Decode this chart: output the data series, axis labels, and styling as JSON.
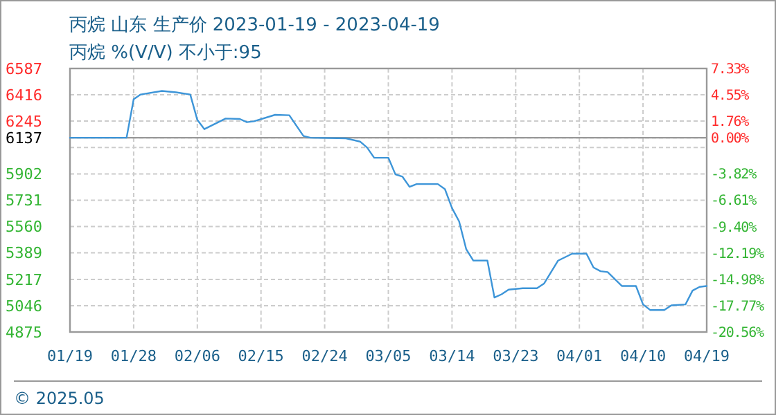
{
  "chart_data": {
    "type": "line",
    "title": "丙烷 山东 生产价 2023-01-19 - 2023-04-19",
    "subtitle": "丙烷 %(V/V) 不小于:95",
    "annotations": [
      "© 2025.05"
    ],
    "x": [
      "2023-01-19",
      "2023-01-27",
      "2023-01-28",
      "2023-01-29",
      "2023-02-01",
      "2023-02-03",
      "2023-02-05",
      "2023-02-06",
      "2023-02-07",
      "2023-02-10",
      "2023-02-12",
      "2023-02-13",
      "2023-02-14",
      "2023-02-17",
      "2023-02-19",
      "2023-02-21",
      "2023-02-22",
      "2023-02-27",
      "2023-03-01",
      "2023-03-02",
      "2023-03-03",
      "2023-03-05",
      "2023-03-06",
      "2023-03-07",
      "2023-03-08",
      "2023-03-09",
      "2023-03-12",
      "2023-03-13",
      "2023-03-14",
      "2023-03-15",
      "2023-03-16",
      "2023-03-17",
      "2023-03-19",
      "2023-03-20",
      "2023-03-21",
      "2023-03-22",
      "2023-03-24",
      "2023-03-26",
      "2023-03-27",
      "2023-03-29",
      "2023-03-31",
      "2023-04-02",
      "2023-04-03",
      "2023-04-04",
      "2023-04-05",
      "2023-04-07",
      "2023-04-09",
      "2023-04-10",
      "2023-04-11",
      "2023-04-13",
      "2023-04-14",
      "2023-04-16",
      "2023-04-17",
      "2023-04-18",
      "2023-04-19"
    ],
    "series": [
      {
        "color": "#3d95d8",
        "values": [
          6137,
          6137,
          6387,
          6418,
          6441,
          6432,
          6418,
          6253,
          6193,
          6262,
          6259,
          6238,
          6244,
          6286,
          6283,
          6148,
          6137,
          6133,
          6112,
          6073,
          6007,
          6007,
          5899,
          5884,
          5818,
          5836,
          5836,
          5803,
          5680,
          5594,
          5414,
          5339,
          5339,
          5099,
          5120,
          5150,
          5159,
          5159,
          5189,
          5339,
          5384,
          5384,
          5294,
          5270,
          5264,
          5174,
          5174,
          5054,
          5018,
          5018,
          5048,
          5054,
          5144,
          5168,
          5174
        ]
      }
    ],
    "xlim": [
      "2023-01-19",
      "2023-04-19"
    ],
    "xticks": [
      {
        "value": "2023-01-19",
        "label": "01/19"
      },
      {
        "value": "2023-01-28",
        "label": "01/28"
      },
      {
        "value": "2023-02-06",
        "label": "02/06"
      },
      {
        "value": "2023-02-15",
        "label": "02/15"
      },
      {
        "value": "2023-02-24",
        "label": "02/24"
      },
      {
        "value": "2023-03-05",
        "label": "03/05"
      },
      {
        "value": "2023-03-14",
        "label": "03/14"
      },
      {
        "value": "2023-03-23",
        "label": "03/23"
      },
      {
        "value": "2023-04-01",
        "label": "04/01"
      },
      {
        "value": "2023-04-10",
        "label": "04/10"
      },
      {
        "value": "2023-04-19",
        "label": "04/19"
      }
    ],
    "ylim": [
      4875,
      6587
    ],
    "yticks": [
      4875,
      5046,
      5217,
      5389,
      5560,
      5731,
      5902,
      {
        "value": 6074,
        "label": null
      },
      6137,
      6245,
      6416,
      6587
    ],
    "y2lim": [
      -20.56,
      7.33
    ],
    "y2ticks": [
      {
        "value": -20.56,
        "label": "-20.56%"
      },
      {
        "value": -17.77,
        "label": "-17.77%"
      },
      {
        "value": -14.98,
        "label": "-14.98%"
      },
      {
        "value": -12.19,
        "label": "-12.19%"
      },
      {
        "value": -9.4,
        "label": "-9.40%"
      },
      {
        "value": -6.61,
        "label": "-6.61%"
      },
      {
        "value": -3.82,
        "label": "-3.82%"
      },
      {
        "value": 0,
        "label": "0.00%"
      },
      {
        "value": 1.76,
        "label": "1.76%"
      },
      {
        "value": 4.55,
        "label": "4.55%"
      },
      {
        "value": 7.33,
        "label": "7.33%"
      }
    ],
    "ref_lines": [
      {
        "axis": "y",
        "value": 6137,
        "color": "#999999"
      }
    ],
    "grid": true
  }
}
